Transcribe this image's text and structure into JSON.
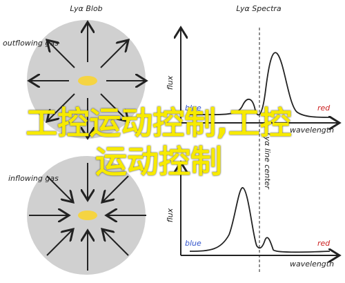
{
  "left": {
    "title": "Lyα Blob",
    "top_label": "outflowing gas",
    "bottom_label": "inflowing gas"
  },
  "right": {
    "title": "Lyα Spectra",
    "y_label": "flux",
    "x_label": "wavelength",
    "blue": "blue",
    "red": "red",
    "line_center": "Lyα line center"
  },
  "overlay": {
    "text": "工控运动控制,工控运动控制"
  }
}
